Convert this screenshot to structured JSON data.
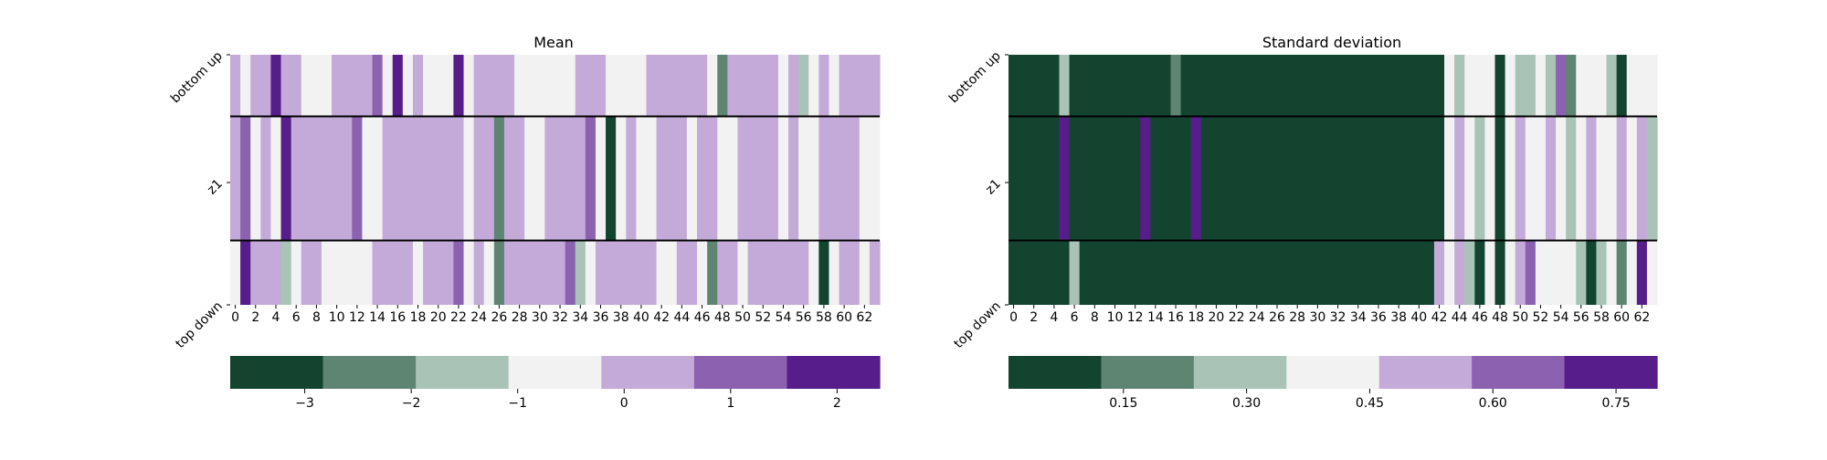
{
  "palette": [
    "#134430",
    "#5e8571",
    "#a9c3b6",
    "#f2f2f2",
    "#c4aad8",
    "#8c62b0",
    "#571d8a"
  ],
  "chart_data": [
    {
      "type": "heatmap",
      "title": "Mean",
      "rows": [
        "bottom up",
        "z1",
        "top down"
      ],
      "x_ticks": [
        "0",
        "2",
        "4",
        "6",
        "8",
        "10",
        "12",
        "14",
        "16",
        "18",
        "20",
        "22",
        "24",
        "26",
        "28",
        "30",
        "32",
        "34",
        "36",
        "38",
        "40",
        "42",
        "44",
        "46",
        "48",
        "50",
        "52",
        "54",
        "56",
        "58",
        "60",
        "62"
      ],
      "n_columns": 64,
      "color_levels": [
        [
          4,
          3,
          4,
          4,
          6,
          4,
          4,
          3,
          3,
          3,
          4,
          4,
          4,
          4,
          5,
          3,
          6,
          3,
          4,
          3,
          3,
          3,
          6,
          3,
          4,
          4,
          4,
          4,
          3,
          3,
          3,
          3,
          3,
          3,
          4,
          4,
          4,
          3,
          3,
          3,
          3,
          4,
          4,
          4,
          4,
          4,
          4,
          3,
          1,
          4,
          4,
          4,
          4,
          4,
          3,
          4,
          2,
          3,
          4,
          3,
          4,
          4,
          4,
          4
        ],
        [
          4,
          5,
          3,
          4,
          3,
          6,
          4,
          4,
          4,
          4,
          4,
          4,
          5,
          3,
          3,
          4,
          4,
          4,
          4,
          4,
          4,
          4,
          4,
          3,
          4,
          4,
          1,
          4,
          4,
          3,
          3,
          4,
          4,
          4,
          4,
          5,
          3,
          0,
          3,
          4,
          3,
          3,
          4,
          4,
          4,
          3,
          4,
          4,
          3,
          3,
          4,
          4,
          4,
          4,
          3,
          4,
          3,
          3,
          4,
          4,
          4,
          4,
          3,
          3
        ],
        [
          3,
          6,
          4,
          4,
          4,
          2,
          3,
          4,
          4,
          3,
          3,
          3,
          3,
          3,
          4,
          4,
          4,
          4,
          3,
          4,
          4,
          4,
          5,
          3,
          4,
          3,
          1,
          4,
          4,
          4,
          4,
          4,
          4,
          5,
          2,
          3,
          4,
          4,
          4,
          4,
          4,
          4,
          3,
          3,
          4,
          4,
          3,
          1,
          4,
          4,
          3,
          4,
          4,
          4,
          4,
          4,
          4,
          3,
          0,
          3,
          4,
          4,
          3,
          4
        ]
      ],
      "colorbar": {
        "ticks": [
          "−3",
          "−2",
          "−1",
          "0",
          "1",
          "2"
        ],
        "tick_values": [
          -3,
          -2,
          -1,
          0,
          1,
          2
        ],
        "range": [
          -3.7,
          2.4
        ]
      }
    },
    {
      "type": "heatmap",
      "title": "Standard deviation",
      "rows": [
        "bottom up",
        "z1",
        "top down"
      ],
      "x_ticks": [
        "0",
        "2",
        "4",
        "6",
        "8",
        "10",
        "12",
        "14",
        "16",
        "18",
        "20",
        "22",
        "24",
        "26",
        "28",
        "30",
        "32",
        "34",
        "36",
        "38",
        "40",
        "42",
        "44",
        "46",
        "48",
        "50",
        "52",
        "54",
        "56",
        "58",
        "60",
        "62"
      ],
      "n_columns": 64,
      "color_levels": [
        [
          0,
          0,
          0,
          0,
          0,
          2,
          0,
          0,
          0,
          0,
          0,
          0,
          0,
          0,
          0,
          0,
          1,
          0,
          0,
          0,
          0,
          0,
          0,
          0,
          0,
          0,
          0,
          0,
          0,
          0,
          0,
          0,
          0,
          0,
          0,
          0,
          0,
          0,
          0,
          0,
          0,
          0,
          0,
          3,
          2,
          3,
          3,
          3,
          0,
          3,
          2,
          2,
          3,
          2,
          5,
          1,
          3,
          3,
          3,
          2,
          0,
          3,
          3,
          3
        ],
        [
          0,
          0,
          0,
          0,
          0,
          6,
          0,
          0,
          0,
          0,
          0,
          0,
          0,
          6,
          0,
          0,
          0,
          0,
          6,
          0,
          0,
          0,
          0,
          0,
          0,
          0,
          0,
          0,
          0,
          0,
          0,
          0,
          0,
          0,
          0,
          0,
          0,
          0,
          0,
          0,
          0,
          0,
          0,
          3,
          4,
          3,
          2,
          3,
          0,
          3,
          4,
          3,
          3,
          4,
          3,
          2,
          3,
          4,
          3,
          3,
          4,
          3,
          4,
          2
        ],
        [
          0,
          0,
          0,
          0,
          0,
          0,
          2,
          0,
          0,
          0,
          0,
          0,
          0,
          0,
          0,
          0,
          0,
          0,
          0,
          0,
          0,
          0,
          0,
          0,
          0,
          0,
          0,
          0,
          0,
          0,
          0,
          0,
          0,
          0,
          0,
          0,
          0,
          0,
          0,
          0,
          0,
          0,
          4,
          3,
          4,
          2,
          0,
          3,
          0,
          3,
          4,
          5,
          3,
          3,
          3,
          3,
          2,
          0,
          2,
          3,
          1,
          3,
          6,
          3
        ]
      ],
      "colorbar": {
        "ticks": [
          "0.15",
          "0.30",
          "0.45",
          "0.60",
          "0.75"
        ],
        "tick_values": [
          0.15,
          0.3,
          0.45,
          0.6,
          0.75
        ],
        "range": [
          0.01,
          0.8
        ]
      }
    }
  ]
}
